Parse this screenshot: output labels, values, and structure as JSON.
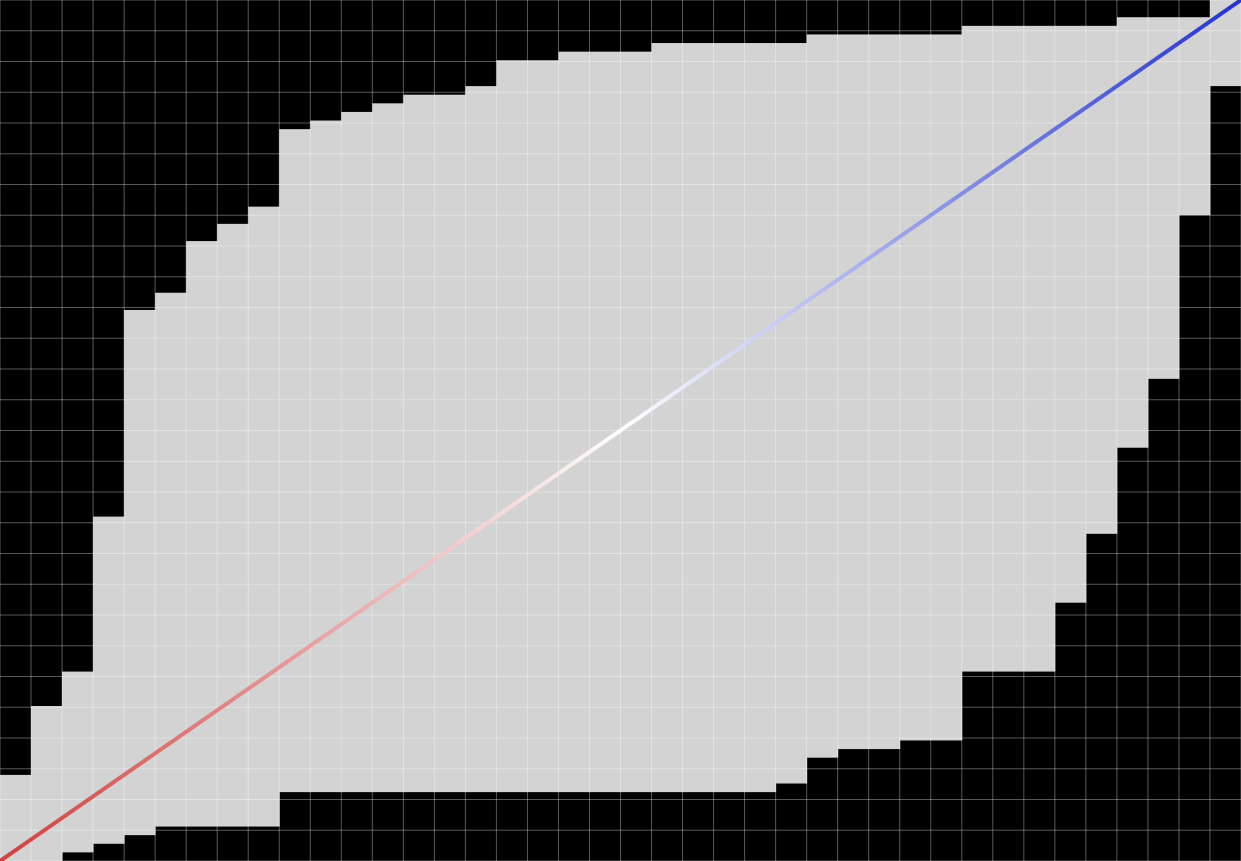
{
  "chart_data": {
    "type": "band-matrix",
    "x": [
      0,
      1,
      2,
      3,
      4,
      5,
      6,
      7,
      8,
      9,
      10,
      11,
      12,
      13,
      14,
      15,
      16,
      17,
      18,
      19,
      20,
      21,
      22,
      23,
      24,
      25,
      26,
      27,
      28,
      29,
      30,
      31,
      32,
      33,
      34,
      35,
      36,
      37,
      38,
      39
    ],
    "lower": [
      0,
      0,
      1,
      2,
      3,
      4,
      4,
      4,
      4,
      8,
      8,
      8,
      8,
      8,
      8,
      8,
      8,
      8,
      8,
      8,
      8,
      8,
      8,
      8,
      8,
      9,
      12,
      13,
      13,
      14,
      14,
      22,
      22,
      22,
      30,
      38,
      48,
      56,
      75,
      90
    ],
    "upper": [
      10,
      18,
      22,
      40,
      64,
      66,
      72,
      74,
      76,
      85,
      86,
      87,
      88,
      89,
      89,
      90,
      93,
      93,
      94,
      94,
      94,
      95,
      95,
      95,
      95,
      95,
      96,
      96,
      96,
      96,
      96,
      97,
      97,
      97,
      97,
      97,
      98,
      98,
      98,
      100
    ],
    "xlim": [
      0,
      40
    ],
    "ylim": [
      0,
      100
    ],
    "background_color": "#000000",
    "band_color": "#d3d3d3",
    "diagonal_colors": [
      "#d04040",
      "#ffffff",
      "#2233cc"
    ],
    "grid": true,
    "grid_color": "#ffffff"
  }
}
